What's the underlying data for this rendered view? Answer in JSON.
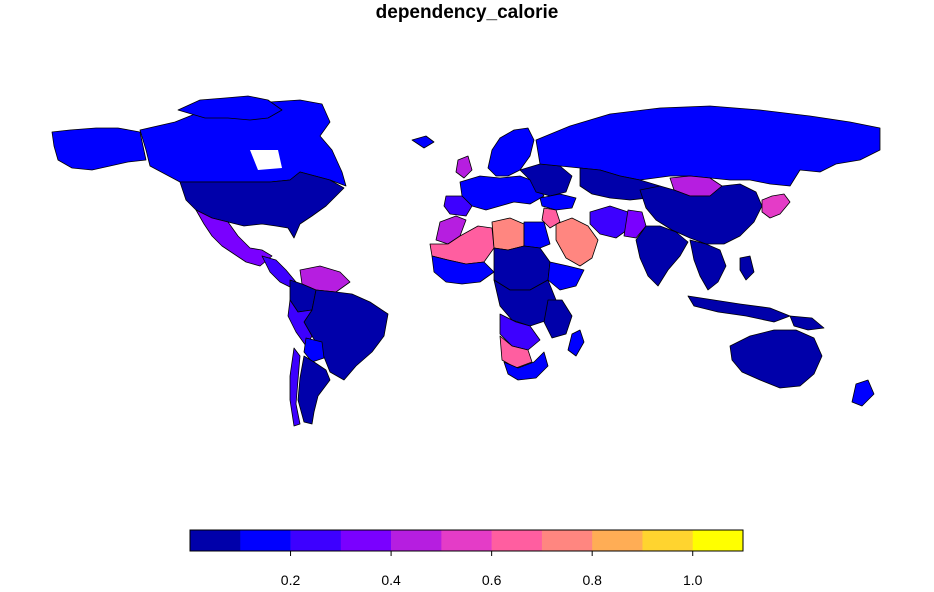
{
  "title": "dependency_calorie",
  "legend": {
    "breaks": [
      0.0,
      0.1,
      0.2,
      0.3,
      0.4,
      0.5,
      0.6,
      0.7,
      0.8,
      0.9,
      1.0,
      1.1
    ],
    "colors": [
      "#0000AA",
      "#0000FF",
      "#3D00FF",
      "#7A00FF",
      "#B61EE0",
      "#E43CC7",
      "#FF5EA0",
      "#FF8680",
      "#FFAD55",
      "#FFD42F",
      "#FFFF00"
    ],
    "tick_values": [
      0.2,
      0.4,
      0.6,
      0.8,
      1.0
    ],
    "tick_labels": [
      "0.2",
      "0.4",
      "0.6",
      "0.8",
      "1.0"
    ]
  }
}
